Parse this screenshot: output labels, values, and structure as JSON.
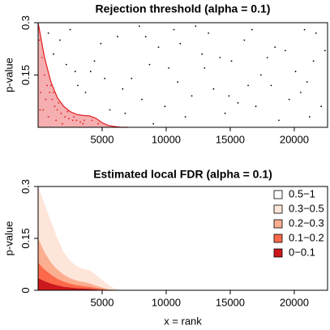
{
  "chart_data": [
    {
      "type": "scatter",
      "title": "Rejection threshold (alpha = 0.1)",
      "ylabel": "p-value",
      "xlim": [
        0,
        22600
      ],
      "ylim": [
        0,
        0.3
      ],
      "xticks": [
        5000,
        10000,
        15000,
        20000
      ],
      "yticks": [
        0.15,
        0.3
      ],
      "series": [
        {
          "color": "#000000",
          "x": [
            1200,
            2500,
            3100,
            4400,
            5600,
            6200,
            7300,
            8100,
            9400,
            10200,
            11500,
            12300,
            13700,
            14200,
            15600,
            16100,
            17400,
            18800,
            19300,
            20500,
            21700,
            22100,
            800,
            2900,
            4900,
            6800,
            8700,
            10900,
            12800,
            14900,
            16700,
            18200,
            20100,
            21200,
            3700,
            7900,
            11100,
            15100,
            19600,
            22400,
            1700,
            5200,
            9900,
            13300,
            17900,
            21000,
            6600,
            10600,
            14600,
            18500,
            2200,
            8400,
            12000,
            16400,
            20800,
            4100,
            9000,
            13000,
            17000,
            21500
          ],
          "values": [
            0.21,
            0.28,
            0.12,
            0.19,
            0.05,
            0.26,
            0.14,
            0.08,
            0.23,
            0.17,
            0.03,
            0.29,
            0.11,
            0.2,
            0.07,
            0.25,
            0.15,
            0.02,
            0.22,
            0.1,
            0.27,
            0.06,
            0.27,
            0.16,
            0.24,
            0.04,
            0.18,
            0.13,
            0.21,
            0.09,
            0.28,
            0.12,
            0.16,
            0.03,
            0.1,
            0.29,
            0.24,
            0.19,
            0.08,
            0.22,
            0.25,
            0.14,
            0.06,
            0.27,
            0.2,
            0.13,
            0.11,
            0.28,
            0.04,
            0.23,
            0.18,
            0.26,
            0.09,
            0.12,
            0.28,
            0.16,
            0.01,
            0.17,
            0.06,
            0.19
          ]
        },
        {
          "color": "#e31a1c",
          "x": [
            100,
            300,
            500,
            700,
            900,
            1100,
            1300,
            1500,
            1800,
            2100,
            2400,
            2700,
            3000,
            3300,
            3600,
            200,
            400,
            600,
            800,
            1000,
            1400,
            1600,
            1900,
            2300,
            2800,
            3500,
            4200,
            4700,
            150,
            1200
          ],
          "values": [
            0.25,
            0.2,
            0.15,
            0.12,
            0.1,
            0.08,
            0.06,
            0.05,
            0.04,
            0.03,
            0.025,
            0.02,
            0.02,
            0.015,
            0.02,
            0.1,
            0.05,
            0.08,
            0.03,
            0.12,
            0.02,
            0.07,
            0.01,
            0.045,
            0.03,
            0.01,
            0.02,
            0.01,
            0.05,
            0.1
          ]
        }
      ],
      "threshold": {
        "color": "#e31a1c",
        "x": [
          0,
          500,
          1000,
          1500,
          2000,
          2500,
          3000,
          3500,
          4000,
          4500,
          5000,
          5500,
          6000,
          6500,
          7000
        ],
        "values": [
          0.3,
          0.2,
          0.13,
          0.085,
          0.06,
          0.045,
          0.037,
          0.034,
          0.033,
          0.026,
          0.013,
          0.005,
          0.002,
          0,
          0
        ]
      }
    },
    {
      "type": "area",
      "title": "Estimated local FDR (alpha = 0.1)",
      "ylabel": "p-value",
      "xlabel": "x = rank",
      "xlim": [
        0,
        22600
      ],
      "ylim": [
        0,
        0.3
      ],
      "xticks": [
        5000,
        10000,
        15000,
        20000
      ],
      "yticks": [
        0,
        0.15,
        0.3
      ],
      "legend": "topright",
      "background": {
        "name": "0.5−1",
        "color": "#ffffff"
      },
      "x": [
        0,
        500,
        1000,
        1500,
        2000,
        2500,
        3000,
        3500,
        4000,
        4500,
        5000,
        5500,
        6000,
        6500,
        7000
      ],
      "series": [
        {
          "name": "0.3−0.5",
          "color": "#fee5d9",
          "values": [
            0.3,
            0.25,
            0.2,
            0.15,
            0.11,
            0.085,
            0.07,
            0.062,
            0.058,
            0.045,
            0.03,
            0.015,
            0.005,
            0.001,
            0
          ]
        },
        {
          "name": "0.2−0.3",
          "color": "#fcae91",
          "values": [
            0.15,
            0.11,
            0.08,
            0.06,
            0.045,
            0.035,
            0.028,
            0.024,
            0.02,
            0.014,
            0.008,
            0.003,
            0.001,
            0,
            0
          ]
        },
        {
          "name": "0.1−0.2",
          "color": "#fb6a4a",
          "values": [
            0.08,
            0.06,
            0.045,
            0.033,
            0.025,
            0.019,
            0.015,
            0.012,
            0.01,
            0.007,
            0.004,
            0.001,
            0,
            0,
            0
          ]
        },
        {
          "name": "0−0.1",
          "color": "#cb181d",
          "values": [
            0.035,
            0.026,
            0.019,
            0.014,
            0.01,
            0.008,
            0.006,
            0.005,
            0.004,
            0.002,
            0.001,
            0,
            0,
            0,
            0
          ]
        }
      ]
    }
  ]
}
